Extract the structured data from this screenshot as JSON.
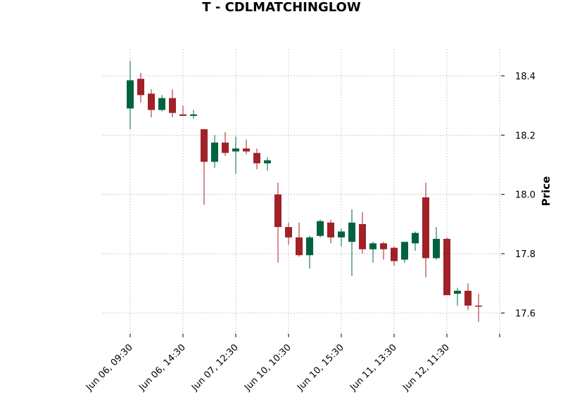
{
  "chart_data": {
    "type": "candlestick",
    "title": "T - CDLMATCHINGLOW",
    "xlabel": "",
    "ylabel": "Price",
    "ylim": [
      17.53,
      18.49
    ],
    "y_ticks": [
      17.6,
      17.8,
      18.0,
      18.2,
      18.4
    ],
    "y_tick_labels": [
      "17.6",
      "17.8",
      "18.0",
      "18.2",
      "18.4"
    ],
    "x_tick_labels": [
      "Jun 06, 09:30",
      "Jun 06, 14:30",
      "Jun 07, 12:30",
      "Jun 10, 10:30",
      "Jun 10, 15:30",
      "Jun 11, 13:30",
      "Jun 12, 11:30",
      ""
    ],
    "x_tick_positions": [
      0,
      5,
      10,
      15,
      20,
      25,
      30,
      35
    ],
    "grid": true,
    "colors": {
      "up": "#006340",
      "down": "#a02128",
      "grid": "#b0b0b0"
    },
    "candles": [
      {
        "open": 18.29,
        "high": 18.45,
        "low": 18.22,
        "close": 18.385
      },
      {
        "open": 18.39,
        "high": 18.41,
        "low": 18.31,
        "close": 18.335
      },
      {
        "open": 18.34,
        "high": 18.355,
        "low": 18.26,
        "close": 18.285
      },
      {
        "open": 18.285,
        "high": 18.335,
        "low": 18.28,
        "close": 18.325
      },
      {
        "open": 18.325,
        "high": 18.355,
        "low": 18.26,
        "close": 18.275
      },
      {
        "open": 18.27,
        "high": 18.3,
        "low": 18.265,
        "close": 18.265
      },
      {
        "open": 18.265,
        "high": 18.285,
        "low": 18.255,
        "close": 18.27
      },
      {
        "open": 18.22,
        "high": 18.22,
        "low": 17.965,
        "close": 18.11
      },
      {
        "open": 18.11,
        "high": 18.2,
        "low": 18.09,
        "close": 18.175
      },
      {
        "open": 18.175,
        "high": 18.21,
        "low": 18.13,
        "close": 18.14
      },
      {
        "open": 18.145,
        "high": 18.195,
        "low": 18.07,
        "close": 18.155
      },
      {
        "open": 18.155,
        "high": 18.185,
        "low": 18.135,
        "close": 18.145
      },
      {
        "open": 18.14,
        "high": 18.155,
        "low": 18.085,
        "close": 18.105
      },
      {
        "open": 18.105,
        "high": 18.125,
        "low": 18.08,
        "close": 18.115
      },
      {
        "open": 18.0,
        "high": 18.04,
        "low": 17.77,
        "close": 17.89
      },
      {
        "open": 17.89,
        "high": 17.905,
        "low": 17.83,
        "close": 17.855
      },
      {
        "open": 17.855,
        "high": 17.905,
        "low": 17.79,
        "close": 17.795
      },
      {
        "open": 17.795,
        "high": 17.86,
        "low": 17.75,
        "close": 17.855
      },
      {
        "open": 17.86,
        "high": 17.915,
        "low": 17.855,
        "close": 17.91
      },
      {
        "open": 17.905,
        "high": 17.915,
        "low": 17.835,
        "close": 17.855
      },
      {
        "open": 17.855,
        "high": 17.885,
        "low": 17.825,
        "close": 17.875
      },
      {
        "open": 17.84,
        "high": 17.95,
        "low": 17.725,
        "close": 17.905
      },
      {
        "open": 17.9,
        "high": 17.94,
        "low": 17.8,
        "close": 17.815
      },
      {
        "open": 17.815,
        "high": 17.84,
        "low": 17.77,
        "close": 17.835
      },
      {
        "open": 17.835,
        "high": 17.84,
        "low": 17.78,
        "close": 17.815
      },
      {
        "open": 17.82,
        "high": 17.825,
        "low": 17.76,
        "close": 17.775
      },
      {
        "open": 17.78,
        "high": 17.84,
        "low": 17.77,
        "close": 17.84
      },
      {
        "open": 17.835,
        "high": 17.875,
        "low": 17.81,
        "close": 17.87
      },
      {
        "open": 17.99,
        "high": 18.04,
        "low": 17.72,
        "close": 17.785
      },
      {
        "open": 17.785,
        "high": 17.89,
        "low": 17.78,
        "close": 17.85
      },
      {
        "open": 17.85,
        "high": 17.855,
        "low": 17.66,
        "close": 17.66
      },
      {
        "open": 17.665,
        "high": 17.685,
        "low": 17.625,
        "close": 17.675
      },
      {
        "open": 17.675,
        "high": 17.7,
        "low": 17.61,
        "close": 17.625
      },
      {
        "open": 17.625,
        "high": 17.665,
        "low": 17.57,
        "close": 17.622
      }
    ]
  }
}
